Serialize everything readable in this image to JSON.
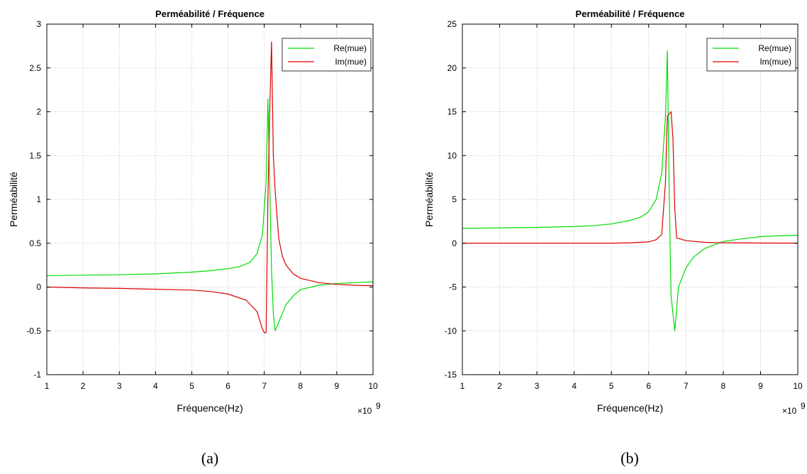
{
  "chart_data": [
    {
      "type": "line",
      "title": "Perméabilité / Fréquence",
      "xlabel": "Fréquence(Hz)",
      "ylabel": "Perméabilité",
      "x_exponent_base": "×10",
      "x_exponent_power": "9",
      "caption": "(a)",
      "xlim": [
        1,
        10
      ],
      "ylim": [
        -1,
        3
      ],
      "xticks": [
        1,
        2,
        3,
        4,
        5,
        6,
        7,
        8,
        9,
        10
      ],
      "xtick_labels": [
        "1",
        "2",
        "3",
        "4",
        "5",
        "6",
        "7",
        "8",
        "9",
        "10"
      ],
      "yticks": [
        -1,
        -0.5,
        0,
        0.5,
        1,
        1.5,
        2,
        2.5,
        3
      ],
      "ytick_labels": [
        "-1",
        "-0.5",
        "0",
        "0.5",
        "1",
        "1.5",
        "2",
        "2.5",
        "3"
      ],
      "grid": true,
      "legend_position": "top-right",
      "series": [
        {
          "name": "Re(mue)",
          "color": "#00dd00",
          "x": [
            1,
            2,
            3,
            4,
            4.5,
            5,
            5.5,
            6,
            6.3,
            6.6,
            6.8,
            6.95,
            7.05,
            7.1,
            7.15,
            7.2,
            7.25,
            7.3,
            7.4,
            7.5,
            7.6,
            7.8,
            8,
            8.5,
            9,
            9.5,
            10
          ],
          "y": [
            0.13,
            0.135,
            0.14,
            0.15,
            0.16,
            0.17,
            0.185,
            0.21,
            0.23,
            0.28,
            0.38,
            0.6,
            1.2,
            2.15,
            1.2,
            0.2,
            -0.3,
            -0.5,
            -0.4,
            -0.3,
            -0.2,
            -0.1,
            -0.03,
            0.02,
            0.04,
            0.05,
            0.06
          ]
        },
        {
          "name": "Im(mue)",
          "color": "#dd0000",
          "x": [
            1,
            2,
            3,
            4,
            5,
            5.5,
            6,
            6.5,
            6.8,
            6.95,
            7.0,
            7.05,
            7.1,
            7.15,
            7.2,
            7.25,
            7.3,
            7.4,
            7.5,
            7.6,
            7.8,
            8,
            8.5,
            9,
            9.5,
            10
          ],
          "y": [
            0,
            -0.01,
            -0.015,
            -0.025,
            -0.035,
            -0.05,
            -0.08,
            -0.15,
            -0.28,
            -0.48,
            -0.52,
            -0.52,
            1.0,
            2.0,
            2.8,
            1.5,
            1.1,
            0.55,
            0.35,
            0.25,
            0.15,
            0.1,
            0.05,
            0.03,
            0.02,
            0.015
          ]
        }
      ]
    },
    {
      "type": "line",
      "title": "Perméabilité / Fréquence",
      "xlabel": "Fréquence(Hz)",
      "ylabel": "Perméabilité",
      "x_exponent_base": "×10",
      "x_exponent_power": "9",
      "caption": "(b)",
      "xlim": [
        1,
        10
      ],
      "ylim": [
        -15,
        25
      ],
      "xticks": [
        1,
        2,
        3,
        4,
        5,
        6,
        7,
        8,
        9,
        10
      ],
      "xtick_labels": [
        "1",
        "2",
        "3",
        "4",
        "5",
        "6",
        "7",
        "8",
        "9",
        "10"
      ],
      "yticks": [
        -15,
        -10,
        -5,
        0,
        5,
        10,
        15,
        20,
        25
      ],
      "ytick_labels": [
        "-15",
        "-10",
        "-5",
        "0",
        "5",
        "10",
        "15",
        "20",
        "25"
      ],
      "grid": true,
      "legend_position": "top-right",
      "series": [
        {
          "name": "Re(mue)",
          "color": "#00dd00",
          "x": [
            1,
            2,
            3,
            4,
            4.5,
            5,
            5.5,
            5.8,
            6,
            6.2,
            6.35,
            6.45,
            6.5,
            6.55,
            6.6,
            6.65,
            6.7,
            6.8,
            7,
            7.2,
            7.5,
            8,
            8.5,
            9,
            9.5,
            10
          ],
          "y": [
            1.7,
            1.75,
            1.8,
            1.9,
            2.0,
            2.2,
            2.6,
            3.0,
            3.6,
            5.0,
            8.0,
            14.5,
            22.0,
            6.0,
            -6.0,
            -8.0,
            -10.0,
            -5.0,
            -2.8,
            -1.6,
            -0.6,
            0.2,
            0.5,
            0.75,
            0.85,
            0.9
          ]
        },
        {
          "name": "Im(mue)",
          "color": "#dd0000",
          "x": [
            1,
            2,
            3,
            4,
            5,
            5.5,
            6,
            6.2,
            6.35,
            6.45,
            6.5,
            6.6,
            6.65,
            6.7,
            6.75,
            7,
            7.5,
            8,
            9,
            10
          ],
          "y": [
            0,
            0,
            0,
            0,
            0,
            0.05,
            0.15,
            0.4,
            1.0,
            7.0,
            14.5,
            15.0,
            12.0,
            4.0,
            0.6,
            0.3,
            0.1,
            0.05,
            0.02,
            0.01
          ]
        }
      ]
    }
  ]
}
